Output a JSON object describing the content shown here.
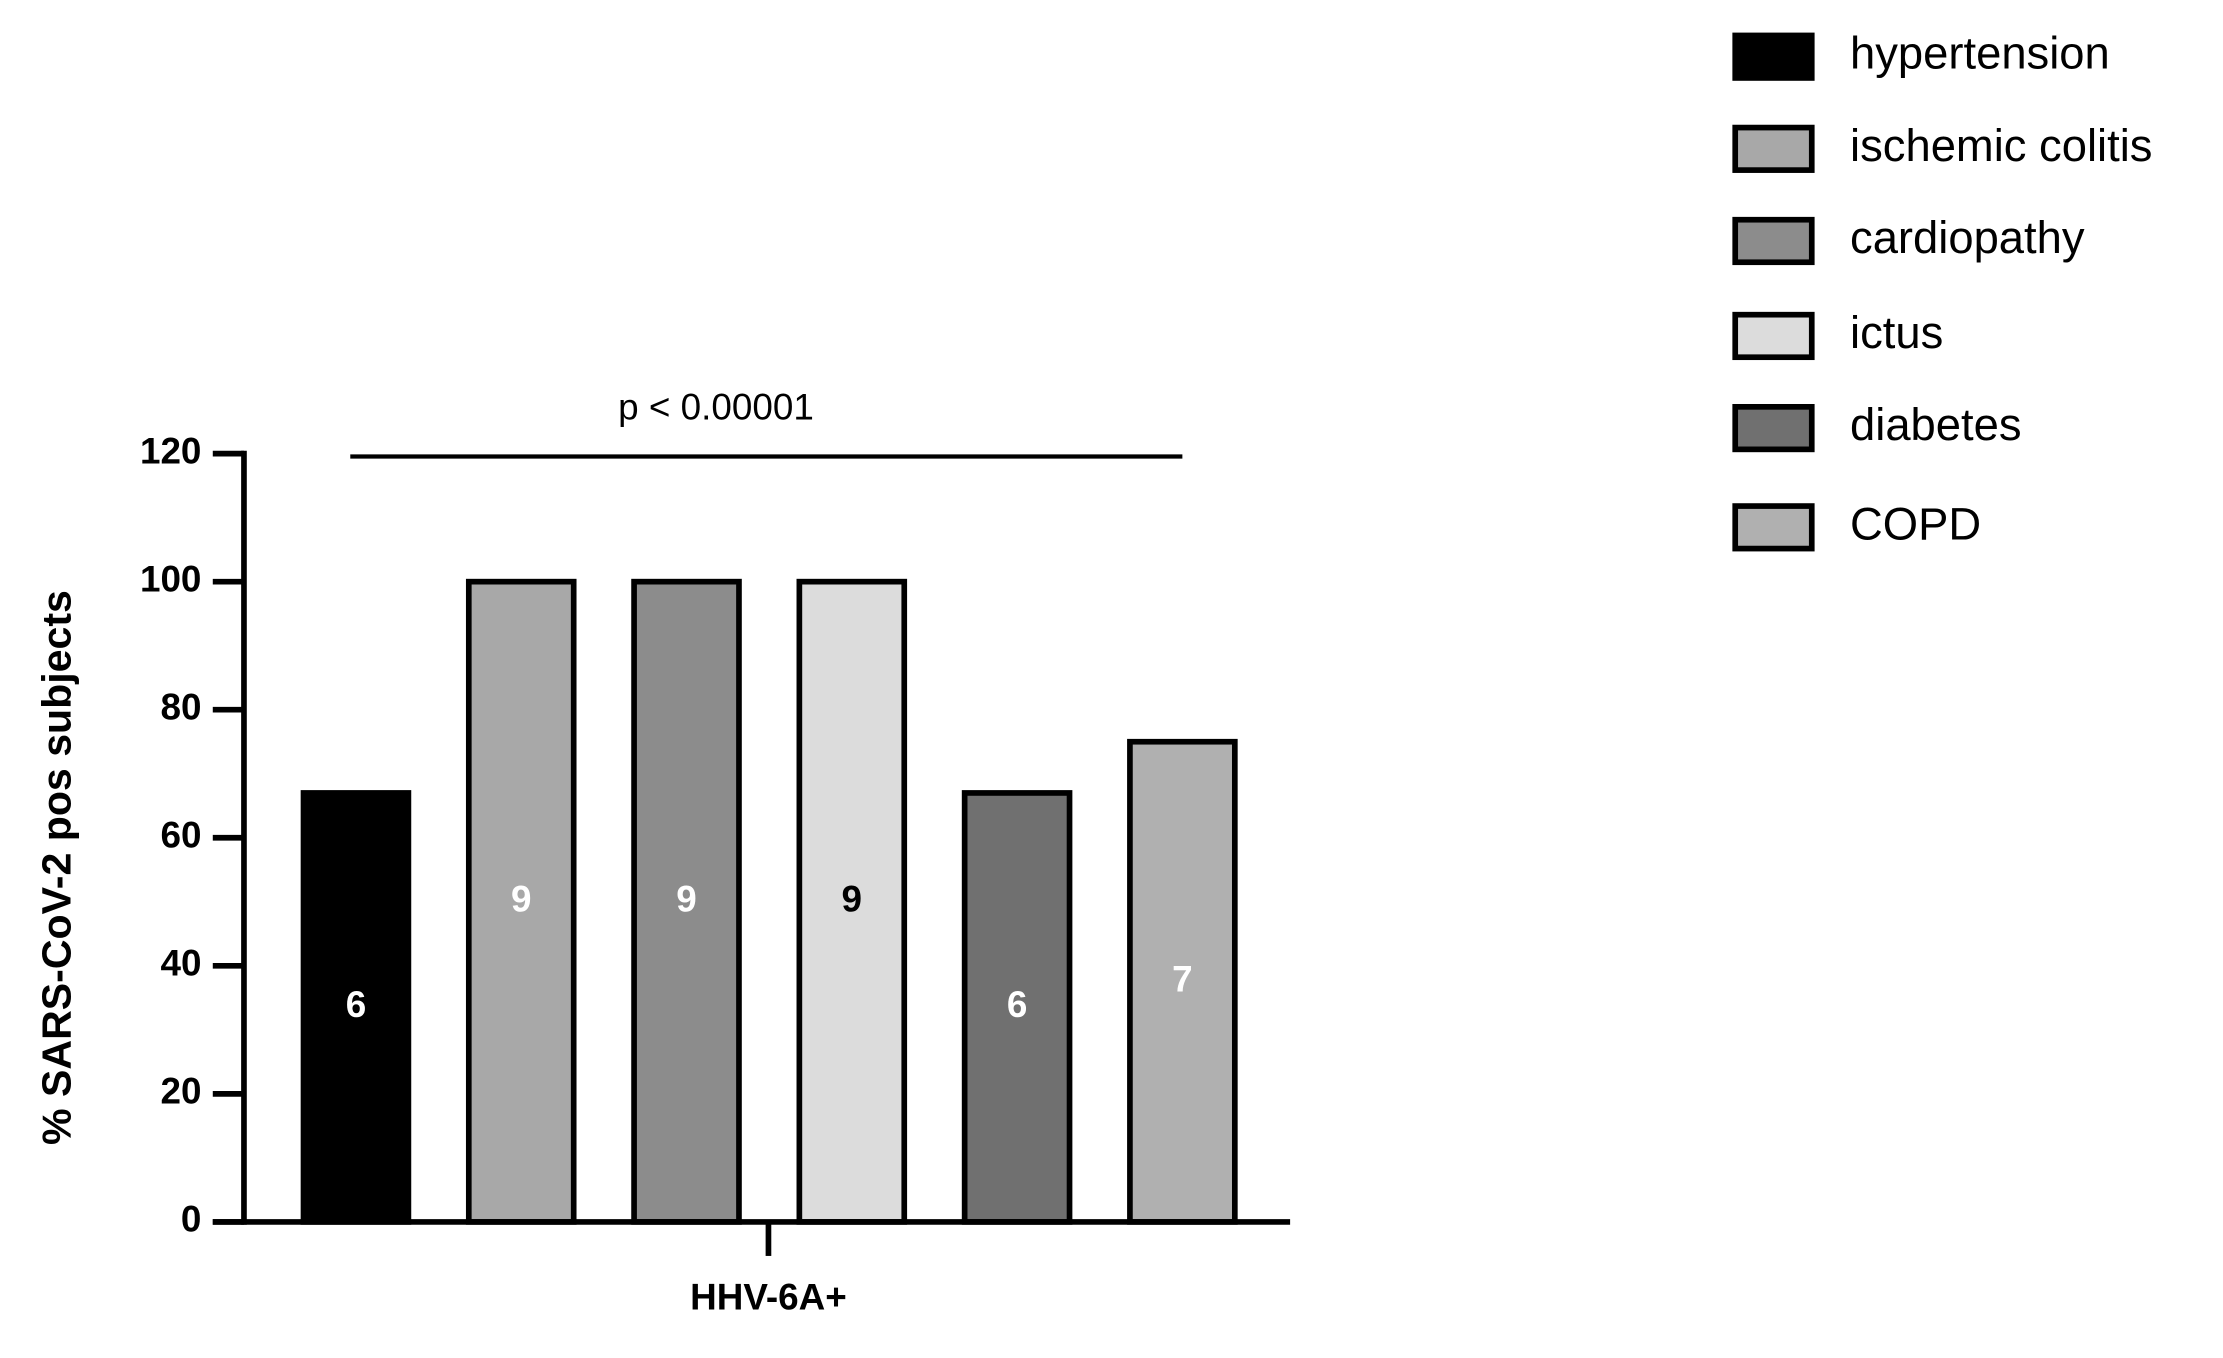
{
  "chart_data": {
    "type": "bar",
    "y_label": "% SARS-CoV-2 pos subjects",
    "categories": [
      "HHV-6A+"
    ],
    "annotation": "p < 0.00001",
    "ylim": [
      0,
      120
    ],
    "yticks": [
      0,
      20,
      40,
      60,
      80,
      100,
      120
    ],
    "grid": false,
    "legend_position": "top-right",
    "series": [
      {
        "name": "hypertension",
        "color": "#000000",
        "values": [
          67
        ],
        "count": 6,
        "label_color": "#ffffff"
      },
      {
        "name": "ischemic colitis",
        "color": "#a8a8a8",
        "values": [
          100
        ],
        "count": 9,
        "label_color": "#ffffff"
      },
      {
        "name": "cardiopathy",
        "color": "#8c8c8c",
        "values": [
          100
        ],
        "count": 9,
        "label_color": "#ffffff"
      },
      {
        "name": "ictus",
        "color": "#dcdcdc",
        "values": [
          100
        ],
        "count": 9,
        "label_color": "#000000"
      },
      {
        "name": "diabetes",
        "color": "#707070",
        "values": [
          67
        ],
        "count": 6,
        "label_color": "#ffffff"
      },
      {
        "name": "COPD",
        "color": "#b0b0b0",
        "values": [
          75
        ],
        "count": 7,
        "label_color": "#ffffff"
      }
    ]
  }
}
